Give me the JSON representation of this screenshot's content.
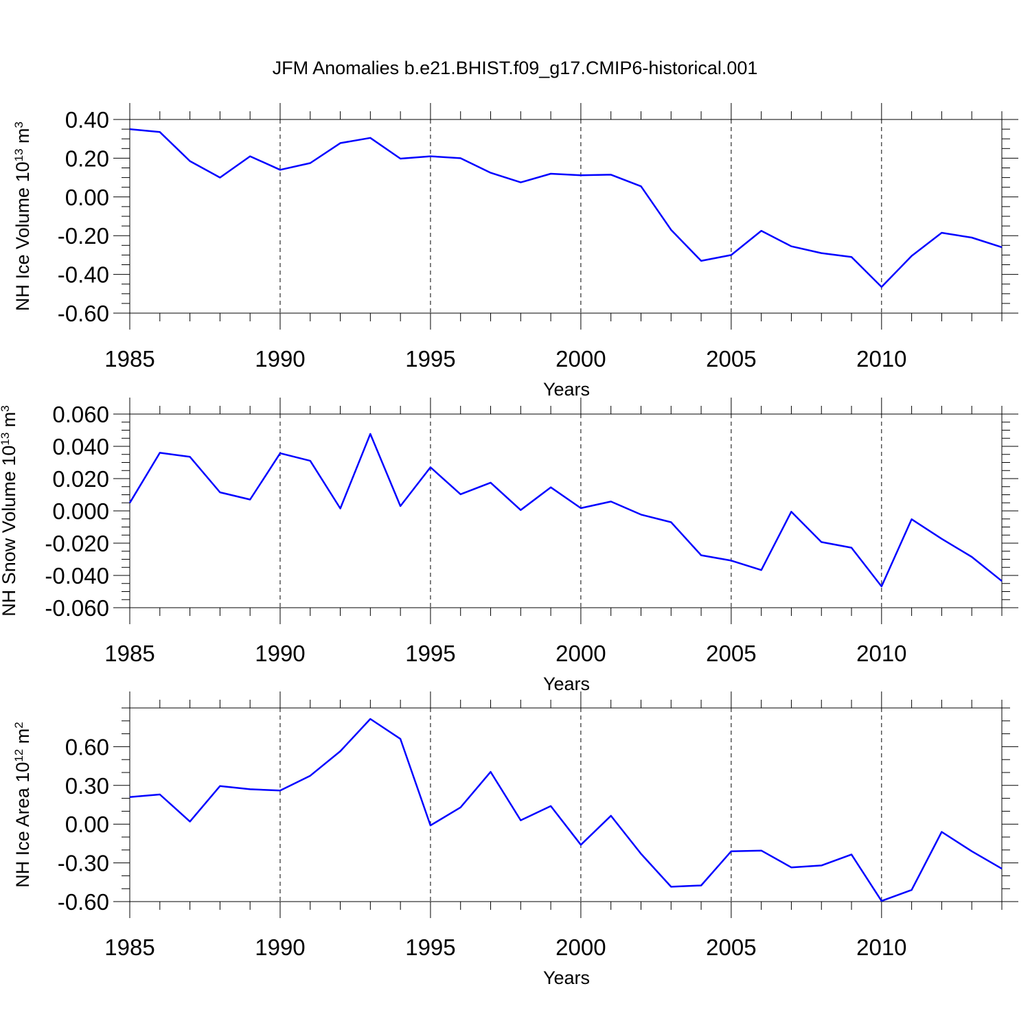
{
  "title": "JFM Anomalies b.e21.BHIST.f09_g17.CMIP6-historical.001",
  "line_color": "#0000ff",
  "chart_data": [
    {
      "type": "line",
      "title": "JFM Anomalies b.e21.BHIST.f09_g17.CMIP6-historical.001",
      "xlabel": "Years",
      "ylabel": "NH Ice Volume 10",
      "ylabel_exp": "13",
      "ylabel_unit": " m",
      "ylabel_unit_exp": "3",
      "xlim": [
        1985,
        2014
      ],
      "ylim": [
        -0.6,
        0.4
      ],
      "xticks": [
        1985,
        1990,
        1995,
        2000,
        2005,
        2010
      ],
      "ytick_labels": [
        "0.40",
        "0.20",
        "0.00",
        "-0.20",
        "-0.40",
        "-0.60"
      ],
      "ytick_values": [
        0.4,
        0.2,
        0.0,
        -0.2,
        -0.4,
        -0.6
      ],
      "yminor_step": 0.05,
      "x": [
        1985,
        1986,
        1987,
        1988,
        1989,
        1990,
        1991,
        1992,
        1993,
        1994,
        1995,
        1996,
        1997,
        1998,
        1999,
        2000,
        2001,
        2002,
        2003,
        2004,
        2005,
        2006,
        2007,
        2008,
        2009,
        2010,
        2011,
        2012,
        2013,
        2014
      ],
      "values": [
        0.35,
        0.335,
        0.185,
        0.1,
        0.21,
        0.14,
        0.175,
        0.278,
        0.305,
        0.198,
        0.21,
        0.2,
        0.125,
        0.075,
        0.12,
        0.112,
        0.115,
        0.055,
        -0.17,
        -0.33,
        -0.3,
        -0.175,
        -0.255,
        -0.29,
        -0.31,
        -0.465,
        -0.305,
        -0.185,
        -0.21,
        -0.26
      ]
    },
    {
      "type": "line",
      "xlabel": "Years",
      "ylabel": "NH Snow Volume 10",
      "ylabel_exp": "13",
      "ylabel_unit": " m",
      "ylabel_unit_exp": "3",
      "xlim": [
        1985,
        2014
      ],
      "ylim": [
        -0.06,
        0.06
      ],
      "xticks": [
        1985,
        1990,
        1995,
        2000,
        2005,
        2010
      ],
      "ytick_labels": [
        "0.060",
        "0.040",
        "0.020",
        "0.000",
        "-0.020",
        "-0.040",
        "-0.060"
      ],
      "ytick_values": [
        0.06,
        0.04,
        0.02,
        0.0,
        -0.02,
        -0.04,
        -0.06
      ],
      "yminor_step": 0.005,
      "x": [
        1985,
        1986,
        1987,
        1988,
        1989,
        1990,
        1991,
        1992,
        1993,
        1994,
        1995,
        1996,
        1997,
        1998,
        1999,
        2000,
        2001,
        2002,
        2003,
        2004,
        2005,
        2006,
        2007,
        2008,
        2009,
        2010,
        2011,
        2012,
        2013,
        2014
      ],
      "values": [
        0.005,
        0.036,
        0.0335,
        0.0115,
        0.007,
        0.0357,
        0.031,
        0.0015,
        0.0477,
        0.003,
        0.027,
        0.0103,
        0.0175,
        0.0005,
        0.0146,
        0.0017,
        0.0058,
        -0.0023,
        -0.007,
        -0.0275,
        -0.0308,
        -0.0367,
        -0.0005,
        -0.0193,
        -0.0228,
        -0.0468,
        -0.0052,
        -0.0173,
        -0.0285,
        -0.0435
      ]
    },
    {
      "type": "line",
      "xlabel": "Years",
      "ylabel": "NH Ice Area 10",
      "ylabel_exp": "12",
      "ylabel_unit": " m",
      "ylabel_unit_exp": "2",
      "xlim": [
        1985,
        2014
      ],
      "ylim": [
        -0.6,
        0.9
      ],
      "xticks": [
        1985,
        1990,
        1995,
        2000,
        2005,
        2010
      ],
      "ytick_labels": [
        "0.60",
        "0.30",
        "0.00",
        "-0.30",
        "-0.60"
      ],
      "ytick_values": [
        0.6,
        0.3,
        0.0,
        -0.3,
        -0.6
      ],
      "yminor_step": 0.1,
      "x": [
        1985,
        1986,
        1987,
        1988,
        1989,
        1990,
        1991,
        1992,
        1993,
        1994,
        1995,
        1996,
        1997,
        1998,
        1999,
        2000,
        2001,
        2002,
        2003,
        2004,
        2005,
        2006,
        2007,
        2008,
        2009,
        2010,
        2011,
        2012,
        2013,
        2014
      ],
      "values": [
        0.21,
        0.23,
        0.02,
        0.295,
        0.27,
        0.26,
        0.375,
        0.565,
        0.815,
        0.66,
        -0.01,
        0.13,
        0.405,
        0.03,
        0.14,
        -0.16,
        0.065,
        -0.23,
        -0.485,
        -0.475,
        -0.21,
        -0.205,
        -0.335,
        -0.32,
        -0.235,
        -0.595,
        -0.51,
        -0.06,
        -0.21,
        -0.345
      ]
    }
  ]
}
